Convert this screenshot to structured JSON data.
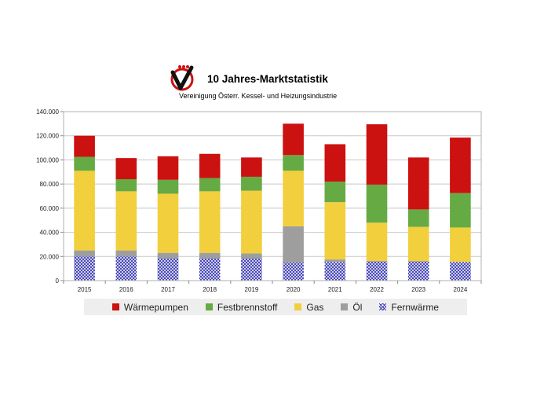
{
  "header": {
    "title": "10 Jahres-Marktstatistik",
    "subtitle": "Vereinigung Österr. Kessel- und Heizungsindustrie"
  },
  "colors": {
    "Wärmepumpen": "#cc1111",
    "Festbrennstoff": "#66aa44",
    "Gas": "#f2cf3c",
    "Öl": "#9e9e9e",
    "Fernwärme": "#3b3bb3"
  },
  "chart_data": {
    "type": "bar",
    "stacked": true,
    "categories": [
      "2015",
      "2016",
      "2017",
      "2018",
      "2019",
      "2020",
      "2021",
      "2022",
      "2023",
      "2024"
    ],
    "series": [
      {
        "name": "Fernwärme",
        "values": [
          20000,
          20000,
          18500,
          18500,
          18500,
          15000,
          15500,
          16000,
          16000,
          15500
        ]
      },
      {
        "name": "Öl",
        "values": [
          5000,
          5000,
          4500,
          4500,
          4000,
          30000,
          2000,
          0,
          0,
          0
        ]
      },
      {
        "name": "Gas",
        "values": [
          66000,
          49000,
          49000,
          51000,
          52000,
          46000,
          47500,
          32000,
          28500,
          28500
        ]
      },
      {
        "name": "Festbrennstoff",
        "values": [
          11500,
          10000,
          11500,
          11000,
          11500,
          13000,
          17000,
          31500,
          14500,
          28500
        ]
      },
      {
        "name": "Wärmepumpen",
        "values": [
          17500,
          17500,
          19500,
          20000,
          16000,
          26000,
          31000,
          50000,
          43000,
          46000
        ]
      }
    ],
    "ylim": [
      0,
      140000
    ],
    "yticks": [
      "0",
      "20.000",
      "40.000",
      "60.000",
      "80.000",
      "100.000",
      "120.000",
      "140.000"
    ],
    "grid": true,
    "legend": {
      "position": "bottom",
      "order": [
        "Wärmepumpen",
        "Festbrennstoff",
        "Gas",
        "Öl",
        "Fernwärme"
      ]
    }
  }
}
